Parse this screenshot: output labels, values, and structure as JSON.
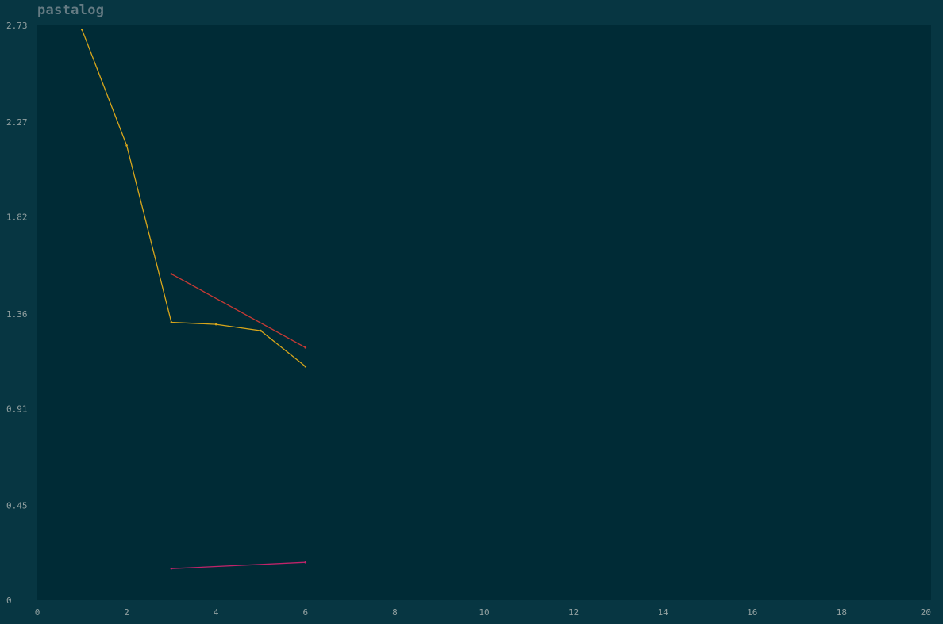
{
  "app": {
    "title": "pastalog"
  },
  "colors": {
    "background": "#073642",
    "plot_background": "#002b36",
    "title": "#657b83",
    "tick_text": "#93a1a1"
  },
  "chart_data": {
    "type": "line",
    "title": "",
    "xlabel": "",
    "ylabel": "",
    "xlim": [
      0,
      20
    ],
    "ylim": [
      0,
      2.73
    ],
    "x_ticks": [
      "0",
      "2",
      "4",
      "6",
      "8",
      "10",
      "12",
      "14",
      "16",
      "18",
      "20"
    ],
    "y_ticks": [
      "0",
      "0.45",
      "0.91",
      "1.36",
      "1.82",
      "2.27",
      "2.73"
    ],
    "grid": false,
    "series": [
      {
        "color": "#d8a61b",
        "x": [
          1,
          2,
          3,
          4,
          5,
          6
        ],
        "y": [
          2.71,
          2.16,
          1.32,
          1.31,
          1.28,
          1.11
        ]
      },
      {
        "color": "#c83a34",
        "x": [
          3,
          6
        ],
        "y": [
          1.55,
          1.2
        ]
      },
      {
        "color": "#c0246a",
        "x": [
          3,
          6
        ],
        "y": [
          0.15,
          0.18
        ]
      }
    ]
  }
}
